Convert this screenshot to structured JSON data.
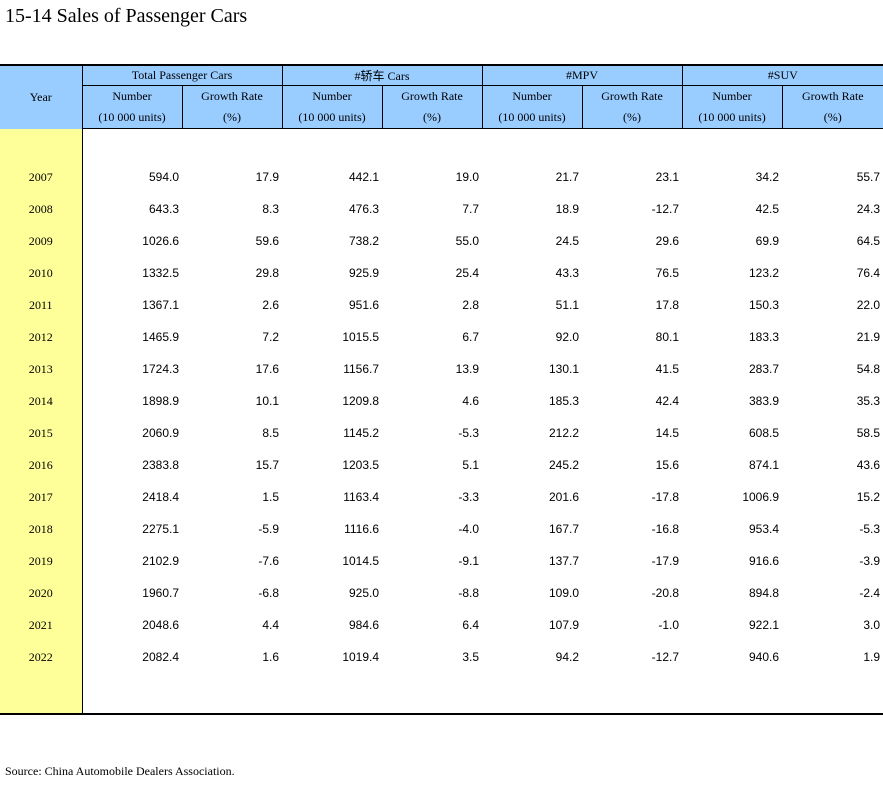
{
  "page": {
    "title": "15-14  Sales of Passenger Cars",
    "source": "Source: China Automobile Dealers Association."
  },
  "table": {
    "year_header": "Year",
    "groups": [
      {
        "label": "Total Passenger Cars"
      },
      {
        "label": "#轿车 Cars"
      },
      {
        "label": "#MPV"
      },
      {
        "label": "#SUV"
      }
    ],
    "sub_headers": {
      "number_line1": "Number",
      "number_line2": "(10 000 units)",
      "rate_line1": "Growth Rate",
      "rate_line2": "(%)"
    },
    "rows": [
      {
        "year": "2007",
        "cells": [
          "594.0",
          "17.9",
          "442.1",
          "19.0",
          "21.7",
          "23.1",
          "34.2",
          "55.7"
        ]
      },
      {
        "year": "2008",
        "cells": [
          "643.3",
          "8.3",
          "476.3",
          "7.7",
          "18.9",
          "-12.7",
          "42.5",
          "24.3"
        ]
      },
      {
        "year": "2009",
        "cells": [
          "1026.6",
          "59.6",
          "738.2",
          "55.0",
          "24.5",
          "29.6",
          "69.9",
          "64.5"
        ]
      },
      {
        "year": "2010",
        "cells": [
          "1332.5",
          "29.8",
          "925.9",
          "25.4",
          "43.3",
          "76.5",
          "123.2",
          "76.4"
        ]
      },
      {
        "year": "2011",
        "cells": [
          "1367.1",
          "2.6",
          "951.6",
          "2.8",
          "51.1",
          "17.8",
          "150.3",
          "22.0"
        ]
      },
      {
        "year": "2012",
        "cells": [
          "1465.9",
          "7.2",
          "1015.5",
          "6.7",
          "92.0",
          "80.1",
          "183.3",
          "21.9"
        ]
      },
      {
        "year": "2013",
        "cells": [
          "1724.3",
          "17.6",
          "1156.7",
          "13.9",
          "130.1",
          "41.5",
          "283.7",
          "54.8"
        ]
      },
      {
        "year": "2014",
        "cells": [
          "1898.9",
          "10.1",
          "1209.8",
          "4.6",
          "185.3",
          "42.4",
          "383.9",
          "35.3"
        ]
      },
      {
        "year": "2015",
        "cells": [
          "2060.9",
          "8.5",
          "1145.2",
          "-5.3",
          "212.2",
          "14.5",
          "608.5",
          "58.5"
        ]
      },
      {
        "year": "2016",
        "cells": [
          "2383.8",
          "15.7",
          "1203.5",
          "5.1",
          "245.2",
          "15.6",
          "874.1",
          "43.6"
        ]
      },
      {
        "year": "2017",
        "cells": [
          "2418.4",
          "1.5",
          "1163.4",
          "-3.3",
          "201.6",
          "-17.8",
          "1006.9",
          "15.2"
        ]
      },
      {
        "year": "2018",
        "cells": [
          "2275.1",
          "-5.9",
          "1116.6",
          "-4.0",
          "167.7",
          "-16.8",
          "953.4",
          "-5.3"
        ]
      },
      {
        "year": "2019",
        "cells": [
          "2102.9",
          "-7.6",
          "1014.5",
          "-9.1",
          "137.7",
          "-17.9",
          "916.6",
          "-3.9"
        ]
      },
      {
        "year": "2020",
        "cells": [
          "1960.7",
          "-6.8",
          "925.0",
          "-8.8",
          "109.0",
          "-20.8",
          "894.8",
          "-2.4"
        ]
      },
      {
        "year": "2021",
        "cells": [
          "2048.6",
          "4.4",
          "984.6",
          "6.4",
          "107.9",
          "-1.0",
          "922.1",
          "3.0"
        ]
      },
      {
        "year": "2022",
        "cells": [
          "2082.4",
          "1.6",
          "1019.4",
          "3.5",
          "94.2",
          "-12.7",
          "940.6",
          "1.9"
        ]
      }
    ]
  },
  "colors": {
    "header_bg": "#99ccff",
    "year_col_bg": "#ffff99",
    "rule": "#000000"
  }
}
